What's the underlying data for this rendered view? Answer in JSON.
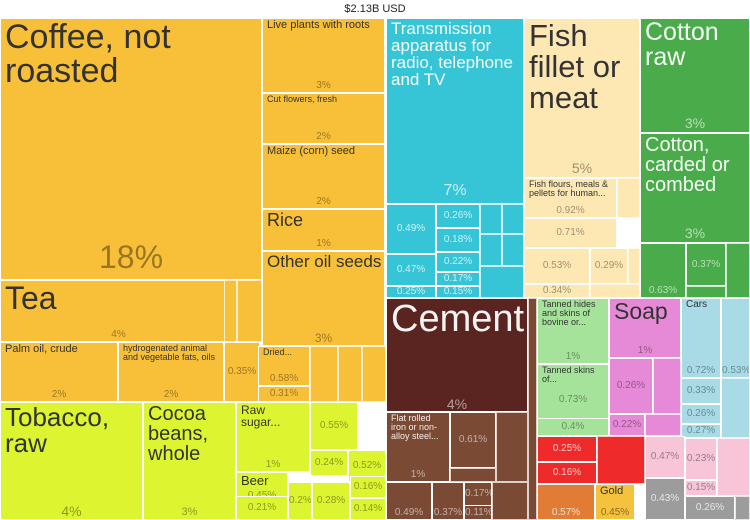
{
  "chart_data": {
    "type": "treemap",
    "title": "$2.13B USD",
    "colors": {
      "food": "#f8bf39",
      "tobacco_plant": "#dcf530",
      "electronics": "#36c5d6",
      "fish": "#fde7b3",
      "cotton": "#4aab4a",
      "cement": "#5a2520",
      "metals": "#7a4a35",
      "chemicals": "#e68ad8",
      "hides": "#a6e39a",
      "cars": "#a8dbe6",
      "red": "#ef2a2a",
      "orange": "#e27b34",
      "gold": "#f4c23c",
      "pink": "#f7c4d8",
      "grey": "#9c9c9c",
      "white": "#ffffff"
    },
    "items": [
      {
        "label": "Coffee, not roasted",
        "pct": "18%"
      },
      {
        "label": "Tea",
        "pct": "4%"
      },
      {
        "label": "Palm oil, crude",
        "pct": "2%"
      },
      {
        "label": "hydrogenated animal and vegetable fats, oils",
        "pct": "2%"
      },
      {
        "label": "",
        "pct": "0.35%"
      },
      {
        "label": "Live plants with roots",
        "pct": "3%"
      },
      {
        "label": "Cut flowers, fresh",
        "pct": "2%"
      },
      {
        "label": "Maize (corn) seed",
        "pct": "2%"
      },
      {
        "label": "Rice",
        "pct": "1%"
      },
      {
        "label": "Other oil seeds",
        "pct": "3%"
      },
      {
        "label": "Dried...",
        "pct": "0.58%"
      },
      {
        "label": "",
        "pct": "0.31%"
      },
      {
        "label": "Tobacco, raw",
        "pct": "4%"
      },
      {
        "label": "Cocoa beans, whole",
        "pct": "3%"
      },
      {
        "label": "Raw sugar...",
        "pct": "1%"
      },
      {
        "label": "Beer",
        "pct": "0.45%"
      },
      {
        "label": "",
        "pct": "0.55%"
      },
      {
        "label": "",
        "pct": "0.24%"
      },
      {
        "label": "",
        "pct": "0.52%"
      },
      {
        "label": "",
        "pct": "0.2%"
      },
      {
        "label": "",
        "pct": "0.28%"
      },
      {
        "label": "",
        "pct": "0.16%"
      },
      {
        "label": "",
        "pct": "0.14%"
      },
      {
        "label": "",
        "pct": "0.21%"
      },
      {
        "label": "Transmission apparatus for radio, telephone and TV",
        "pct": "7%"
      },
      {
        "label": "",
        "pct": "0.49%"
      },
      {
        "label": "",
        "pct": "0.26%"
      },
      {
        "label": "",
        "pct": "0.18%"
      },
      {
        "label": "",
        "pct": "0.22%"
      },
      {
        "label": "",
        "pct": "0.47%"
      },
      {
        "label": "",
        "pct": "0.17%"
      },
      {
        "label": "",
        "pct": "0.25%"
      },
      {
        "label": "",
        "pct": "0.15%"
      },
      {
        "label": "Fish fillet or meat",
        "pct": "5%"
      },
      {
        "label": "Fish flours, meals & pellets for human...",
        "pct": "0.92%"
      },
      {
        "label": "",
        "pct": "0.71%"
      },
      {
        "label": "",
        "pct": "0.53%"
      },
      {
        "label": "",
        "pct": "0.29%"
      },
      {
        "label": "",
        "pct": "0.34%"
      },
      {
        "label": "Cotton raw",
        "pct": "3%"
      },
      {
        "label": "Cotton, carded or combed",
        "pct": "3%"
      },
      {
        "label": "",
        "pct": "0.37%"
      },
      {
        "label": "",
        "pct": "0.63%"
      },
      {
        "label": "Cement",
        "pct": "4%"
      },
      {
        "label": "Flat rolled iron or non-alloy steel...",
        "pct": "1%"
      },
      {
        "label": "",
        "pct": "0.61%"
      },
      {
        "label": "",
        "pct": "0.49%"
      },
      {
        "label": "",
        "pct": "0.37%"
      },
      {
        "label": "",
        "pct": "0.11%"
      },
      {
        "label": "",
        "pct": "0.17%"
      },
      {
        "label": "Tanned hides and skins of bovine or...",
        "pct": "1%"
      },
      {
        "label": "Tanned skins of...",
        "pct": "0.73%"
      },
      {
        "label": "",
        "pct": "0.4%"
      },
      {
        "label": "Soap",
        "pct": "1%"
      },
      {
        "label": "",
        "pct": "0.26%"
      },
      {
        "label": "",
        "pct": "0.22%"
      },
      {
        "label": "Cars",
        "pct": "0.72%"
      },
      {
        "label": "",
        "pct": "0.53%"
      },
      {
        "label": "",
        "pct": "0.33%"
      },
      {
        "label": "",
        "pct": "0.26%"
      },
      {
        "label": "",
        "pct": "0.27%"
      },
      {
        "label": "",
        "pct": "0.25%"
      },
      {
        "label": "",
        "pct": "0.16%"
      },
      {
        "label": "",
        "pct": "0.57%"
      },
      {
        "label": "Gold",
        "pct": "0.45%"
      },
      {
        "label": "",
        "pct": "0.47%"
      },
      {
        "label": "",
        "pct": "0.23%"
      },
      {
        "label": "",
        "pct": "0.15%"
      },
      {
        "label": "",
        "pct": "0.43%"
      },
      {
        "label": "",
        "pct": "0.26%"
      }
    ]
  }
}
